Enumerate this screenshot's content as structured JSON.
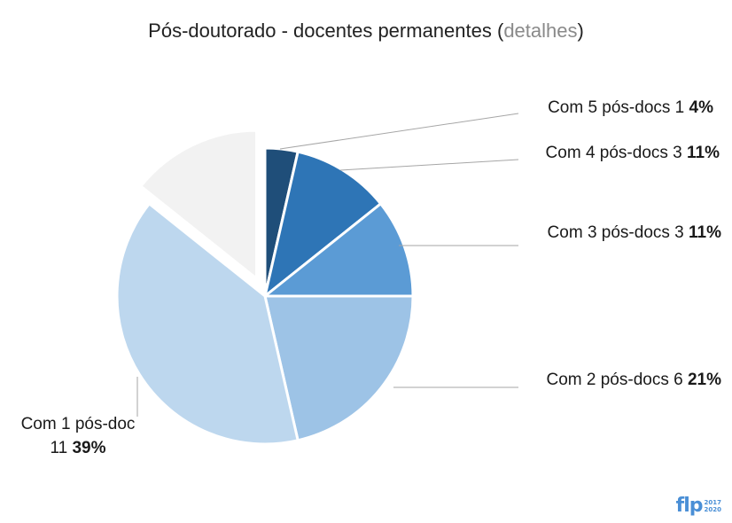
{
  "title": {
    "main": "Pós-doutorado - docentes permanentes",
    "paren_open": " (",
    "link": "detalhes",
    "paren_close": ")"
  },
  "colors": {
    "slice_5": "#1f4e79",
    "slice_4": "#2e75b6",
    "slice_3": "#5b9bd5",
    "slice_2": "#9dc3e6",
    "slice_1": "#bdd7ee",
    "slice_none": "#f2f2f2",
    "leader_line": "#a6a6a6",
    "logo": "#4a8fd6"
  },
  "chart_data": {
    "type": "pie",
    "title": "Pós-doutorado - docentes permanentes",
    "slices": [
      {
        "label": "Com 5 pós-docs",
        "count": "1",
        "percent": "4%",
        "value": 1,
        "color": "#1f4e79"
      },
      {
        "label": "Com 4 pós-docs",
        "count": "3",
        "percent": "11%",
        "value": 3,
        "color": "#2e75b6"
      },
      {
        "label": "Com 3 pós-docs",
        "count": "3",
        "percent": "11%",
        "value": 3,
        "color": "#5b9bd5"
      },
      {
        "label": "Com 2 pós-docs",
        "count": "6",
        "percent": "21%",
        "value": 6,
        "color": "#9dc3e6"
      },
      {
        "label": "Com 1 pós-doc",
        "count": "11",
        "percent": "39%",
        "value": 11,
        "color": "#bdd7ee"
      },
      {
        "label": "",
        "count": "",
        "percent": "",
        "value": 4,
        "color": "#f2f2f2",
        "exploded": true
      }
    ]
  },
  "logo": {
    "text": "flp",
    "year_start": "2017",
    "year_end": "2020"
  }
}
